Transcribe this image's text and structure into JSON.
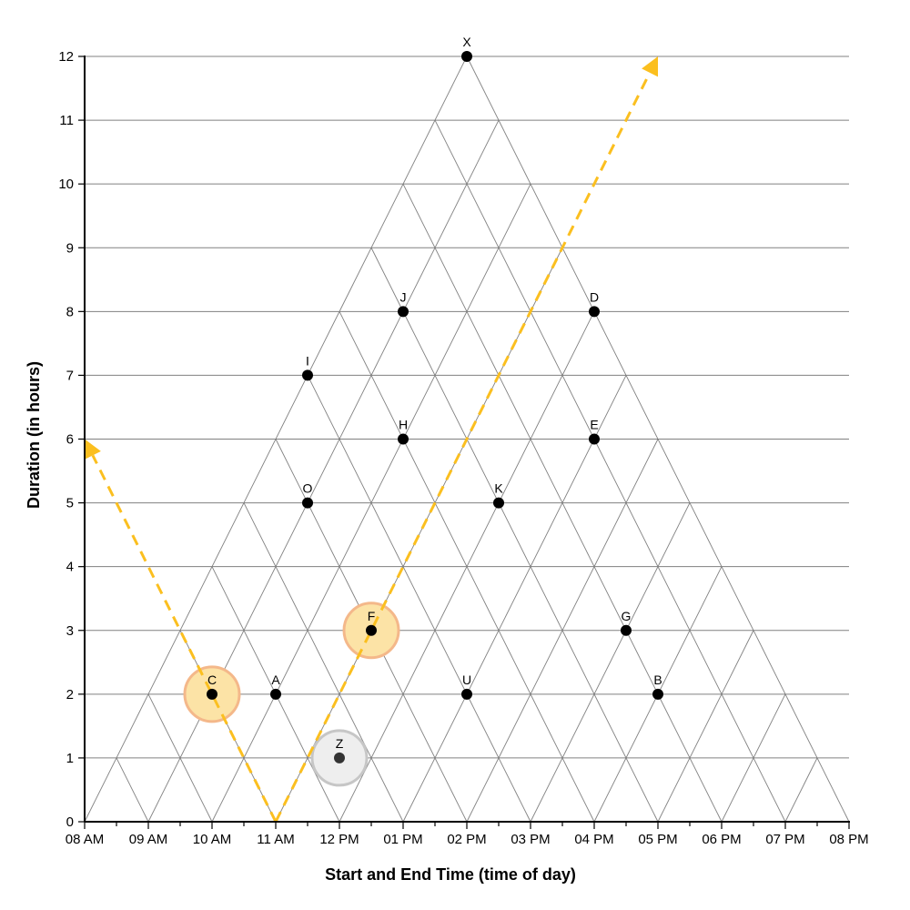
{
  "chart_data": {
    "type": "scatter",
    "title": "",
    "xlabel": "Start and End Time (time of day)",
    "ylabel": "Duration (in hours)",
    "x_ticks": [
      "08 AM",
      "09 AM",
      "10 AM",
      "11 AM",
      "12 PM",
      "01 PM",
      "02 PM",
      "03 PM",
      "04 PM",
      "05 PM",
      "06 PM",
      "07 PM",
      "08 PM"
    ],
    "xlim": [
      8,
      20
    ],
    "ylim": [
      0,
      12
    ],
    "y_ticks": [
      0,
      1,
      2,
      3,
      4,
      5,
      6,
      7,
      8,
      9,
      10,
      11,
      12
    ],
    "grid": "triangular",
    "points": [
      {
        "label": "X",
        "x": 14,
        "y": 12,
        "highlight": "none"
      },
      {
        "label": "J",
        "x": 13,
        "y": 8,
        "highlight": "none"
      },
      {
        "label": "D",
        "x": 16,
        "y": 8,
        "highlight": "none"
      },
      {
        "label": "I",
        "x": 11.5,
        "y": 7,
        "highlight": "none"
      },
      {
        "label": "H",
        "x": 13,
        "y": 6,
        "highlight": "none"
      },
      {
        "label": "E",
        "x": 16,
        "y": 6,
        "highlight": "none"
      },
      {
        "label": "O",
        "x": 11.5,
        "y": 5,
        "highlight": "none"
      },
      {
        "label": "K",
        "x": 14.5,
        "y": 5,
        "highlight": "none"
      },
      {
        "label": "F",
        "x": 12.5,
        "y": 3,
        "highlight": "orange"
      },
      {
        "label": "G",
        "x": 16.5,
        "y": 3,
        "highlight": "none"
      },
      {
        "label": "C",
        "x": 10,
        "y": 2,
        "highlight": "orange"
      },
      {
        "label": "A",
        "x": 11,
        "y": 2,
        "highlight": "none"
      },
      {
        "label": "U",
        "x": 14,
        "y": 2,
        "highlight": "none"
      },
      {
        "label": "B",
        "x": 17,
        "y": 2,
        "highlight": "none"
      },
      {
        "label": "Z",
        "x": 12,
        "y": 1,
        "highlight": "gray"
      }
    ],
    "arrows": [
      {
        "from": [
          11,
          0
        ],
        "to": [
          8,
          6
        ]
      },
      {
        "from": [
          11,
          0
        ],
        "to": [
          17,
          12
        ]
      }
    ],
    "colors": {
      "arrow": "#FBBF1F",
      "highlight_orange_fill": "#FCE3A6",
      "highlight_orange_stroke": "#F4B88A",
      "highlight_gray_fill": "#EEEEEE",
      "highlight_gray_stroke": "#C6C6C6",
      "point": "#000000",
      "grid": "#808080"
    }
  }
}
